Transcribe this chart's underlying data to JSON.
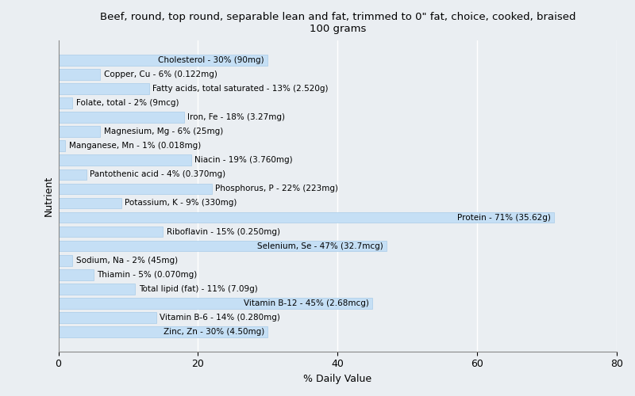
{
  "title": "Beef, round, top round, separable lean and fat, trimmed to 0\" fat, choice, cooked, braised\n100 grams",
  "xlabel": "% Daily Value",
  "ylabel": "Nutrient",
  "xlim": [
    0,
    80
  ],
  "bar_color": "#c5dff5",
  "bar_edge_color": "#a8cce8",
  "background_color": "#eaeef2",
  "plot_bg_color": "#eaeef2",
  "grid_color": "#ffffff",
  "nutrients": [
    {
      "label": "Cholesterol - 30% (90mg)",
      "value": 30
    },
    {
      "label": "Copper, Cu - 6% (0.122mg)",
      "value": 6
    },
    {
      "label": "Fatty acids, total saturated - 13% (2.520g)",
      "value": 13
    },
    {
      "label": "Folate, total - 2% (9mcg)",
      "value": 2
    },
    {
      "label": "Iron, Fe - 18% (3.27mg)",
      "value": 18
    },
    {
      "label": "Magnesium, Mg - 6% (25mg)",
      "value": 6
    },
    {
      "label": "Manganese, Mn - 1% (0.018mg)",
      "value": 1
    },
    {
      "label": "Niacin - 19% (3.760mg)",
      "value": 19
    },
    {
      "label": "Pantothenic acid - 4% (0.370mg)",
      "value": 4
    },
    {
      "label": "Phosphorus, P - 22% (223mg)",
      "value": 22
    },
    {
      "label": "Potassium, K - 9% (330mg)",
      "value": 9
    },
    {
      "label": "Protein - 71% (35.62g)",
      "value": 71
    },
    {
      "label": "Riboflavin - 15% (0.250mg)",
      "value": 15
    },
    {
      "label": "Selenium, Se - 47% (32.7mcg)",
      "value": 47
    },
    {
      "label": "Sodium, Na - 2% (45mg)",
      "value": 2
    },
    {
      "label": "Thiamin - 5% (0.070mg)",
      "value": 5
    },
    {
      "label": "Total lipid (fat) - 11% (7.09g)",
      "value": 11
    },
    {
      "label": "Vitamin B-12 - 45% (2.68mcg)",
      "value": 45
    },
    {
      "label": "Vitamin B-6 - 14% (0.280mg)",
      "value": 14
    },
    {
      "label": "Zinc, Zn - 30% (4.50mg)",
      "value": 30
    }
  ],
  "label_inside_threshold": 25,
  "fontsize": 7.5,
  "title_fontsize": 9.5,
  "bar_height": 0.75
}
